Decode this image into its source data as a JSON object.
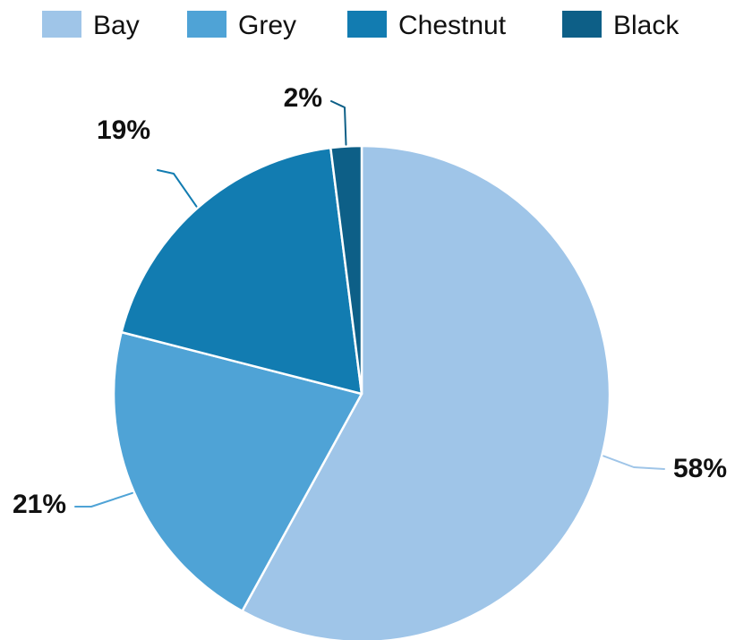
{
  "chart_data": {
    "type": "pie",
    "categories": [
      "Bay",
      "Grey",
      "Chestnut",
      "Black"
    ],
    "values": [
      58,
      21,
      19,
      2
    ],
    "labels": [
      "58%",
      "21%",
      "19%",
      "2%"
    ],
    "colors": [
      "#9fc5e8",
      "#4fa3d6",
      "#127cb1",
      "#0d5f87"
    ],
    "legend_position": "top",
    "start_angle": "12 o'clock, clockwise"
  }
}
